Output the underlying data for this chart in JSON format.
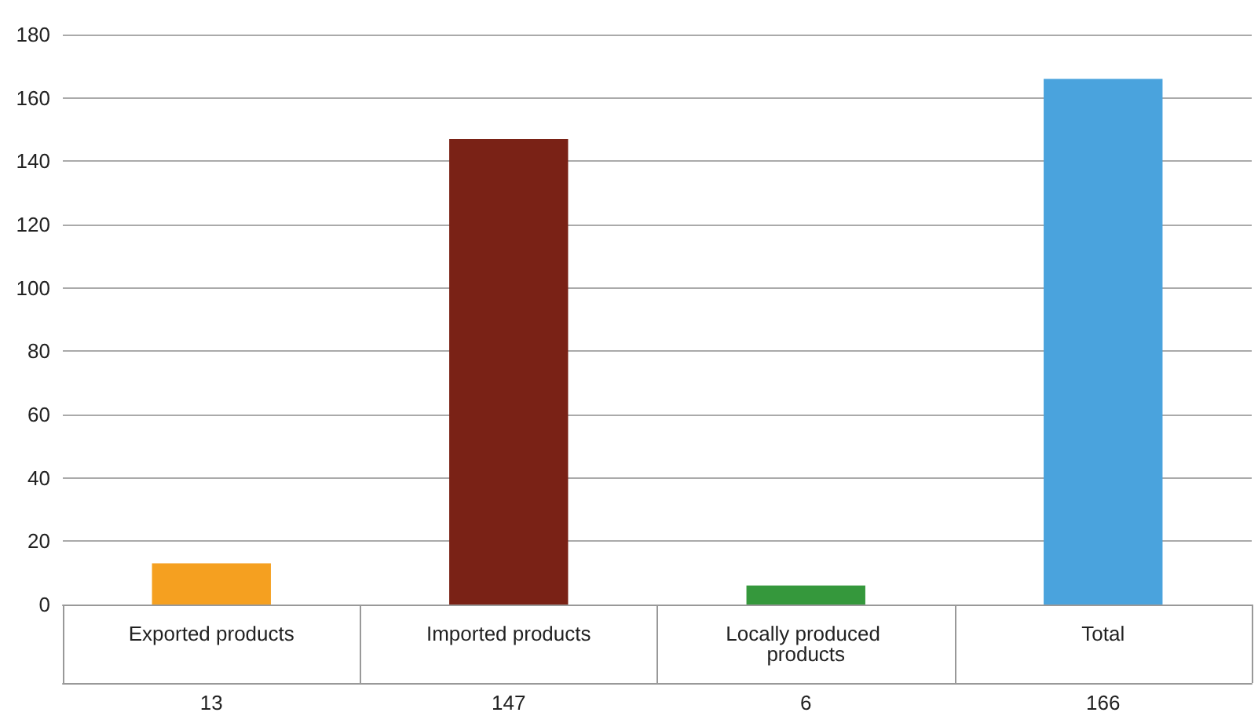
{
  "chart_data": {
    "type": "bar",
    "categories": [
      "Exported products",
      "Imported products",
      "Locally produced products",
      "Total"
    ],
    "values": [
      13,
      147,
      6,
      166
    ],
    "colors": [
      "#f5a020",
      "#7a2216",
      "#35983c",
      "#4aa3dd"
    ],
    "ylim": [
      0,
      180
    ],
    "yticks": [
      0,
      20,
      40,
      60,
      80,
      100,
      120,
      140,
      160,
      180
    ],
    "grid": "y",
    "data_labels": true
  }
}
